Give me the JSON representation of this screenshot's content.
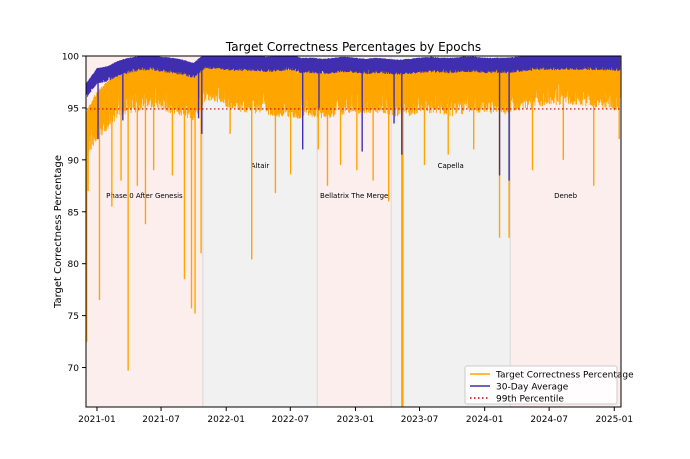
{
  "chart_data": {
    "type": "line",
    "title": "Target Correctness Percentages by Epochs",
    "xlabel": "",
    "ylabel": "Target Correctness Percentage",
    "ylim": [
      66.2,
      100
    ],
    "xlim": [
      "2020-12-01",
      "2025-01-20"
    ],
    "x_ticks": [
      "2021-01",
      "2021-07",
      "2022-01",
      "2022-07",
      "2023-01",
      "2023-07",
      "2024-01",
      "2024-07",
      "2025-01"
    ],
    "y_ticks": [
      70,
      75,
      80,
      85,
      90,
      95,
      100
    ],
    "grid": false,
    "legend_position": "lower-right",
    "epochs": [
      {
        "label": "Phase 0 After Genesis",
        "start": "2020-12-01",
        "end": "2021-10-27",
        "color": "#fdeeee"
      },
      {
        "label": "Altair",
        "start": "2021-10-27",
        "end": "2022-09-15",
        "color": "#f1f1f1"
      },
      {
        "label": "Bellatrix The Merge",
        "start": "2022-09-15",
        "end": "2023-04-12",
        "color": "#fdeeee"
      },
      {
        "label": "Capella",
        "start": "2023-04-12",
        "end": "2024-03-13",
        "color": "#f1f1f1"
      },
      {
        "label": "Deneb",
        "start": "2024-03-13",
        "end": "2025-01-20",
        "color": "#fdeeee"
      }
    ],
    "series": [
      {
        "name": "Target Correctness Percentage",
        "color": "#ffa500",
        "x": [
          "2020-12-01",
          "2021-01-01",
          "2021-02-01",
          "2021-03-01",
          "2021-04-01",
          "2021-05-01",
          "2021-06-01",
          "2021-07-01",
          "2021-08-01",
          "2021-09-01",
          "2021-10-01",
          "2021-11-01",
          "2021-12-01",
          "2022-01-01",
          "2022-02-01",
          "2022-03-01",
          "2022-04-01",
          "2022-05-01",
          "2022-06-01",
          "2022-07-01",
          "2022-08-01",
          "2022-09-01",
          "2022-10-01",
          "2022-11-01",
          "2022-12-01",
          "2023-01-01",
          "2023-02-01",
          "2023-03-01",
          "2023-04-01",
          "2023-05-01",
          "2023-06-01",
          "2023-07-01",
          "2023-08-01",
          "2023-09-01",
          "2023-10-01",
          "2023-11-01",
          "2023-12-01",
          "2024-01-01",
          "2024-02-01",
          "2024-03-01",
          "2024-04-01",
          "2024-05-01",
          "2024-06-01",
          "2024-07-01",
          "2024-08-01",
          "2024-09-01",
          "2024-10-01",
          "2024-11-01",
          "2024-12-01",
          "2025-01-01"
        ],
        "values": [
          93.0,
          95.0,
          96.0,
          97.2,
          97.5,
          97.8,
          98.0,
          97.8,
          97.5,
          97.2,
          96.8,
          98.6,
          98.5,
          98.2,
          97.8,
          97.5,
          97.6,
          97.4,
          97.2,
          97.2,
          97.0,
          97.2,
          97.0,
          97.2,
          97.5,
          97.6,
          97.5,
          97.6,
          97.5,
          97.2,
          97.3,
          97.5,
          97.6,
          97.4,
          97.3,
          97.5,
          97.6,
          97.6,
          97.5,
          97.5,
          97.8,
          98.0,
          98.2,
          98.3,
          98.4,
          98.4,
          98.3,
          98.2,
          98.0,
          97.8
        ],
        "dips": [
          {
            "x": "2020-12-03",
            "y": 72.5
          },
          {
            "x": "2020-12-07",
            "y": 87.0
          },
          {
            "x": "2021-01-08",
            "y": 76.5
          },
          {
            "x": "2021-02-12",
            "y": 85.5
          },
          {
            "x": "2021-03-10",
            "y": 88.0
          },
          {
            "x": "2021-03-30",
            "y": 69.7
          },
          {
            "x": "2021-04-25",
            "y": 87.5
          },
          {
            "x": "2021-05-18",
            "y": 83.8
          },
          {
            "x": "2021-06-10",
            "y": 89.0
          },
          {
            "x": "2021-08-02",
            "y": 88.5
          },
          {
            "x": "2021-09-05",
            "y": 78.5
          },
          {
            "x": "2021-09-25",
            "y": 75.7
          },
          {
            "x": "2021-10-05",
            "y": 75.2
          },
          {
            "x": "2021-10-22",
            "y": 81.0
          },
          {
            "x": "2022-01-12",
            "y": 92.5
          },
          {
            "x": "2022-03-14",
            "y": 80.4
          },
          {
            "x": "2022-05-20",
            "y": 86.8
          },
          {
            "x": "2022-07-02",
            "y": 88.6
          },
          {
            "x": "2022-09-18",
            "y": 91.0
          },
          {
            "x": "2022-10-14",
            "y": 87.5
          },
          {
            "x": "2022-11-20",
            "y": 89.5
          },
          {
            "x": "2023-01-05",
            "y": 89.0
          },
          {
            "x": "2023-02-20",
            "y": 88.0
          },
          {
            "x": "2023-04-05",
            "y": 86.0
          },
          {
            "x": "2023-05-12",
            "y": 66.2
          },
          {
            "x": "2023-05-15",
            "y": 66.2
          },
          {
            "x": "2023-07-15",
            "y": 89.5
          },
          {
            "x": "2023-09-20",
            "y": 90.5
          },
          {
            "x": "2023-12-01",
            "y": 91.0
          },
          {
            "x": "2024-02-12",
            "y": 82.5
          },
          {
            "x": "2024-03-10",
            "y": 82.5
          },
          {
            "x": "2024-05-15",
            "y": 89.0
          },
          {
            "x": "2024-08-10",
            "y": 90.0
          },
          {
            "x": "2024-11-04",
            "y": 87.5
          },
          {
            "x": "2025-01-15",
            "y": 92.0
          }
        ]
      },
      {
        "name": "30-Day Average",
        "color": "#3f2fb0",
        "x": [
          "2020-12-01",
          "2021-01-01",
          "2021-02-01",
          "2021-03-01",
          "2021-04-01",
          "2021-05-01",
          "2021-06-01",
          "2021-07-01",
          "2021-08-01",
          "2021-09-01",
          "2021-10-01",
          "2021-11-01",
          "2021-12-01",
          "2022-01-01",
          "2022-02-01",
          "2022-03-01",
          "2022-04-01",
          "2022-05-01",
          "2022-06-01",
          "2022-07-01",
          "2022-08-01",
          "2022-09-01",
          "2022-10-01",
          "2022-11-01",
          "2022-12-01",
          "2023-01-01",
          "2023-02-01",
          "2023-03-01",
          "2023-04-01",
          "2023-05-01",
          "2023-06-01",
          "2023-07-01",
          "2023-08-01",
          "2023-09-01",
          "2023-10-01",
          "2023-11-01",
          "2023-12-01",
          "2024-01-01",
          "2024-02-01",
          "2024-03-01",
          "2024-04-01",
          "2024-05-01",
          "2024-06-01",
          "2024-07-01",
          "2024-08-01",
          "2024-09-01",
          "2024-10-01",
          "2024-11-01",
          "2024-12-01",
          "2025-01-01"
        ],
        "values": [
          96.5,
          98.0,
          98.2,
          98.7,
          99.0,
          99.2,
          99.3,
          99.1,
          99.0,
          98.8,
          98.5,
          99.4,
          99.4,
          99.3,
          99.2,
          99.2,
          99.2,
          99.1,
          99.2,
          99.3,
          99.0,
          99.0,
          98.9,
          99.0,
          99.1,
          99.0,
          98.9,
          99.0,
          98.9,
          98.8,
          98.9,
          99.0,
          99.1,
          99.0,
          99.0,
          99.1,
          99.1,
          99.0,
          99.0,
          99.0,
          99.1,
          99.2,
          99.3,
          99.3,
          99.3,
          99.3,
          99.3,
          99.3,
          99.3,
          99.2
        ],
        "dips": [
          {
            "x": "2021-01-04",
            "y": 92.0
          },
          {
            "x": "2021-03-15",
            "y": 93.8
          },
          {
            "x": "2021-10-15",
            "y": 94.0
          },
          {
            "x": "2021-10-24",
            "y": 92.5
          },
          {
            "x": "2022-08-05",
            "y": 91.0
          },
          {
            "x": "2022-09-20",
            "y": 95.0
          },
          {
            "x": "2023-01-20",
            "y": 90.8
          },
          {
            "x": "2023-04-20",
            "y": 93.5
          },
          {
            "x": "2023-05-12",
            "y": 90.5
          },
          {
            "x": "2024-02-12",
            "y": 88.5
          },
          {
            "x": "2024-03-10",
            "y": 88.0
          }
        ]
      },
      {
        "name": "99th Percentile",
        "color": "#cc0000",
        "style": "dotted",
        "value": 94.9
      }
    ]
  }
}
